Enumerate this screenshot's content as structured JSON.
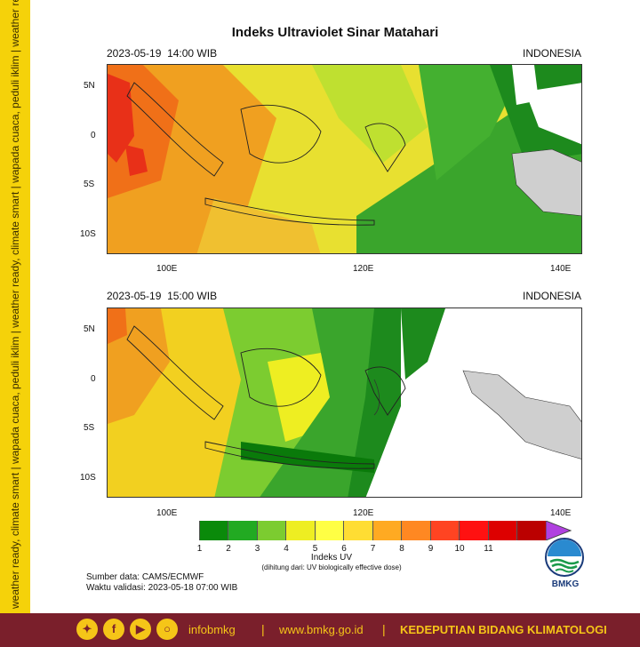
{
  "title": "Indeks Ultraviolet Sinar Matahari",
  "sidebar_text": "weather ready, climate smart | wapada cuaca, peduli iklim | weather ready, climate smart | wapada cuaca, peduli iklim | weather ready, climate smart | wapada cuaca, peduli iklim",
  "panels": [
    {
      "date": "2023-05-19",
      "time": "14:00 WIB",
      "region": "INDONESIA"
    },
    {
      "date": "2023-05-19",
      "time": "15:00 WIB",
      "region": "INDONESIA"
    }
  ],
  "axes": {
    "lat_labels": [
      "5N",
      "0",
      "5S",
      "10S"
    ],
    "lon_labels": [
      "100E",
      "120E",
      "140E"
    ]
  },
  "legend": {
    "title": "Indeks UV",
    "subtitle": "(dihitung dari: UV biologically effective dose)",
    "levels": [
      "1",
      "2",
      "3",
      "4",
      "5",
      "6",
      "7",
      "8",
      "9",
      "10",
      "11"
    ],
    "colors": [
      "#ffffff",
      "#0a8a0a",
      "#22aa22",
      "#7ccc30",
      "#eeee22",
      "#ffff44",
      "#ffdd33",
      "#ffaa22",
      "#ff8822",
      "#ff4422",
      "#ff1111",
      "#dd0000",
      "#bb0000",
      "#b040e0"
    ]
  },
  "source": {
    "line1": "Sumber data: CAMS/ECMWF",
    "line2": "Waktu validasi: 2023-05-18 07:00 WIB"
  },
  "logo": {
    "label": "BMKG"
  },
  "footer": {
    "handle": "infobmkg",
    "website": "www.bmkg.go.id",
    "department": "KEDEPUTIAN BIDANG KLIMATOLOGI",
    "separator": "|"
  },
  "social_icons": [
    "twitter-icon",
    "facebook-icon",
    "youtube-icon",
    "instagram-icon"
  ]
}
